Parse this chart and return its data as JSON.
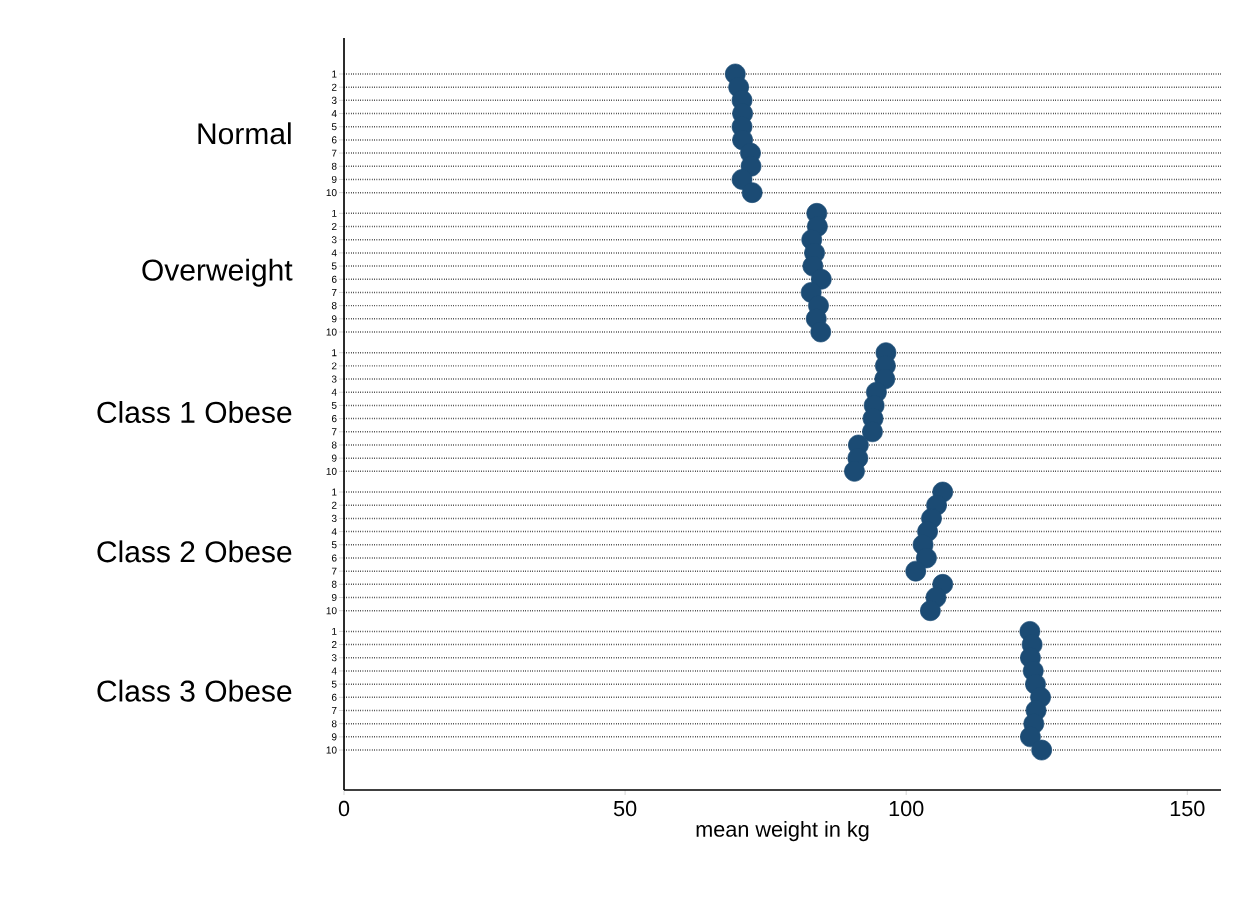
{
  "chart_data": {
    "type": "scatter",
    "orientation": "horizontal",
    "categories": [
      "1",
      "2",
      "3",
      "4",
      "5",
      "6",
      "7",
      "8",
      "9",
      "10",
      "1",
      "2",
      "3",
      "4",
      "5",
      "6",
      "7",
      "8",
      "9",
      "10",
      "1",
      "2",
      "3",
      "4",
      "5",
      "6",
      "7",
      "8",
      "9",
      "10",
      "1",
      "2",
      "3",
      "4",
      "5",
      "6",
      "7",
      "8",
      "9",
      "10",
      "1",
      "2",
      "3",
      "4",
      "5",
      "6",
      "7",
      "8",
      "9",
      "10"
    ],
    "values": [
      69.6,
      70.2,
      70.8,
      70.9,
      70.8,
      70.9,
      72.3,
      72.4,
      70.8,
      72.6,
      84.1,
      84.2,
      83.2,
      83.7,
      83.4,
      84.9,
      83.1,
      84.4,
      84.0,
      84.8,
      96.4,
      96.3,
      96.2,
      94.7,
      94.3,
      94.1,
      94.0,
      91.5,
      91.4,
      90.8,
      106.5,
      105.4,
      104.5,
      103.8,
      103.0,
      103.6,
      101.7,
      106.5,
      105.3,
      104.3,
      122.0,
      122.4,
      122.1,
      122.6,
      123.0,
      123.9,
      123.1,
      122.7,
      122.1,
      124.1
    ],
    "color": "#1b4b74",
    "xlim": [
      0,
      156
    ],
    "xticks": [
      0,
      50,
      100,
      150
    ],
    "xlabel": "mean weight in kg",
    "annotations": [
      "Normal",
      "Overweight",
      "Class 1 Obese",
      "Class 2 Obese",
      "Class 3 Obese"
    ],
    "grid": "y",
    "marker": "circle"
  }
}
